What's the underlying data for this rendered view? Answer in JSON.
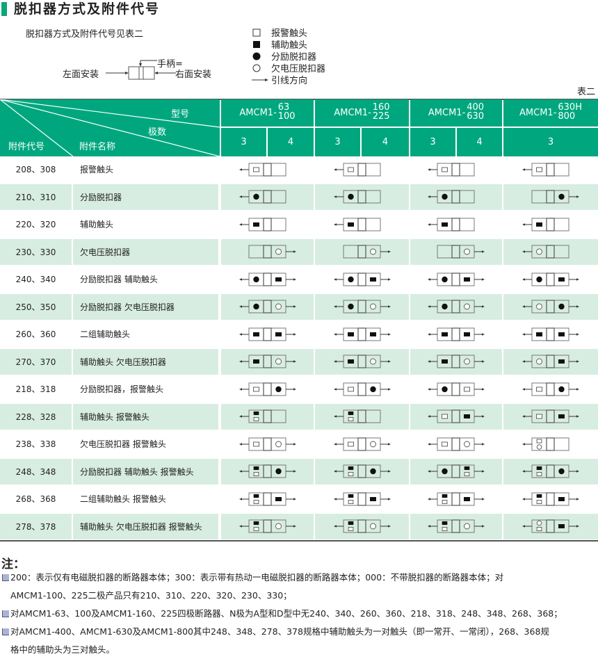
{
  "title": "脱扣器方式及附件代号",
  "intro": "脱扣器方式及附件代号见表二",
  "mounting": {
    "left": "左面安装",
    "right": "右面安装",
    "handle": "手柄="
  },
  "legend": [
    {
      "icon": "white-square",
      "label": "报警触头"
    },
    {
      "icon": "black-square",
      "label": "辅助触头"
    },
    {
      "icon": "black-circle",
      "label": "分励脱扣器"
    },
    {
      "icon": "white-circle",
      "label": "欠电压脱扣器"
    },
    {
      "icon": "arrow-right",
      "label": "引线方向"
    }
  ],
  "table_no": "表二",
  "colors": {
    "header_green": "#00a77e",
    "row_alt": "#d8ede1"
  },
  "header": {
    "model_label": "型号",
    "poles_label": "极数",
    "code_label": "附件代号",
    "name_label": "附件名称",
    "models": [
      {
        "prefix": "AMCM1-",
        "top": "63",
        "bottom": "100",
        "poles": [
          "3",
          "4"
        ]
      },
      {
        "prefix": "AMCM1-",
        "top": "160",
        "bottom": "225",
        "poles": [
          "3",
          "4"
        ]
      },
      {
        "prefix": "AMCM1-",
        "top": "400",
        "bottom": "630",
        "poles": [
          "3",
          "4"
        ]
      },
      {
        "prefix": "AMCM1-",
        "top": "630H",
        "bottom": "800",
        "poles": [
          "3"
        ]
      }
    ]
  },
  "rows": [
    {
      "code": "208、308",
      "name": "报警触头",
      "diagrams": [
        {
          "left": [
            "white-square"
          ],
          "right": [],
          "arrows": "left"
        },
        {
          "left": [
            "white-square"
          ],
          "right": [],
          "arrows": "left"
        },
        {
          "left": [
            "white-square"
          ],
          "right": [],
          "arrows": "left"
        },
        {
          "left": [
            "white-square"
          ],
          "right": [],
          "arrows": "left"
        }
      ]
    },
    {
      "code": "210、310",
      "name": "分励脱扣器",
      "diagrams": [
        {
          "left": [
            "black-circle"
          ],
          "right": [],
          "arrows": "left"
        },
        {
          "left": [
            "black-circle"
          ],
          "right": [],
          "arrows": "left"
        },
        {
          "left": [
            "black-circle"
          ],
          "right": [],
          "arrows": "left"
        },
        {
          "left": [],
          "right": [
            "black-circle"
          ],
          "arrows": "right"
        }
      ]
    },
    {
      "code": "220、320",
      "name": "辅助触头",
      "diagrams": [
        {
          "left": [
            "black-square"
          ],
          "right": [],
          "arrows": "left"
        },
        {
          "left": [
            "black-square"
          ],
          "right": [],
          "arrows": "left"
        },
        {
          "left": [
            "black-square"
          ],
          "right": [],
          "arrows": "left"
        },
        {
          "left": [
            "black-square"
          ],
          "right": [],
          "arrows": "left"
        }
      ]
    },
    {
      "code": "230、330",
      "name": "欠电压脱扣器",
      "diagrams": [
        {
          "left": [],
          "right": [
            "white-circle"
          ],
          "arrows": "right"
        },
        {
          "left": [],
          "right": [
            "white-circle"
          ],
          "arrows": "right"
        },
        {
          "left": [],
          "right": [
            "white-circle"
          ],
          "arrows": "right"
        },
        {
          "left": [
            "white-circle"
          ],
          "right": [],
          "arrows": "left"
        }
      ]
    },
    {
      "code": "240、340",
      "name": "分励脱扣器 辅助触头",
      "diagrams": [
        {
          "left": [
            "black-circle"
          ],
          "right": [
            "black-square"
          ],
          "arrows": "both"
        },
        {
          "left": [
            "black-circle"
          ],
          "right": [
            "black-square"
          ],
          "arrows": "both"
        },
        {
          "left": [
            "black-circle"
          ],
          "right": [
            "black-square"
          ],
          "arrows": "both"
        },
        {
          "left": [
            "black-circle"
          ],
          "right": [
            "black-square"
          ],
          "arrows": "both"
        }
      ]
    },
    {
      "code": "250、350",
      "name": "分励脱扣器 欠电压脱扣器",
      "diagrams": [
        {
          "left": [
            "black-circle"
          ],
          "right": [
            "white-circle"
          ],
          "arrows": "both"
        },
        {
          "left": [
            "black-circle"
          ],
          "right": [
            "white-circle"
          ],
          "arrows": "both"
        },
        {
          "left": [
            "black-circle"
          ],
          "right": [
            "white-circle"
          ],
          "arrows": "both"
        },
        {
          "left": [
            "white-circle"
          ],
          "right": [
            "black-circle"
          ],
          "arrows": "both"
        }
      ]
    },
    {
      "code": "260、360",
      "name": "二组辅助触头",
      "diagrams": [
        {
          "left": [
            "black-square"
          ],
          "right": [
            "black-square"
          ],
          "arrows": "both"
        },
        {
          "left": [
            "black-square"
          ],
          "right": [
            "black-square"
          ],
          "arrows": "both"
        },
        {
          "left": [
            "black-square"
          ],
          "right": [
            "black-square"
          ],
          "arrows": "both"
        },
        {
          "left": [
            "black-square"
          ],
          "right": [
            "black-square"
          ],
          "arrows": "both"
        }
      ]
    },
    {
      "code": "270、370",
      "name": "辅助触头 欠电压脱扣器",
      "diagrams": [
        {
          "left": [
            "black-square"
          ],
          "right": [
            "white-circle"
          ],
          "arrows": "both"
        },
        {
          "left": [
            "black-square"
          ],
          "right": [
            "white-circle"
          ],
          "arrows": "both"
        },
        {
          "left": [
            "black-square"
          ],
          "right": [
            "white-circle"
          ],
          "arrows": "both"
        },
        {
          "left": [
            "white-circle"
          ],
          "right": [
            "black-square"
          ],
          "arrows": "both"
        }
      ]
    },
    {
      "code": "218、318",
      "name": "分励脱扣器，报警触头",
      "diagrams": [
        {
          "left": [
            "white-square"
          ],
          "right": [
            "black-circle"
          ],
          "arrows": "both"
        },
        {
          "left": [
            "white-square"
          ],
          "right": [
            "black-circle"
          ],
          "arrows": "both"
        },
        {
          "left": [
            "black-circle"
          ],
          "right": [
            "white-square"
          ],
          "arrows": "both"
        },
        {
          "left": [
            "white-square"
          ],
          "right": [
            "black-circle"
          ],
          "arrows": "both"
        }
      ]
    },
    {
      "code": "228、328",
      "name": "辅助触头 报警触头",
      "diagrams": [
        {
          "left": [
            "black-square",
            "white-square"
          ],
          "right": [],
          "arrows": "left"
        },
        {
          "left": [
            "black-square",
            "white-square"
          ],
          "right": [],
          "arrows": "left"
        },
        {
          "left": [
            "white-square"
          ],
          "right": [
            "black-square"
          ],
          "arrows": "both"
        },
        {
          "left": [
            "white-square"
          ],
          "right": [
            "black-square"
          ],
          "arrows": "both"
        }
      ]
    },
    {
      "code": "238、338",
      "name": "欠电压脱扣器 报警触头",
      "diagrams": [
        {
          "left": [
            "white-square"
          ],
          "right": [
            "white-circle"
          ],
          "arrows": "both"
        },
        {
          "left": [
            "white-square"
          ],
          "right": [
            "white-circle"
          ],
          "arrows": "both"
        },
        {
          "left": [
            "white-square"
          ],
          "right": [
            "white-circle"
          ],
          "arrows": "both"
        },
        {
          "left": [
            "white-square",
            "white-circle"
          ],
          "right": [],
          "arrows": "left"
        }
      ]
    },
    {
      "code": "248、348",
      "name": "分励脱扣器 辅助触头 报警触头",
      "diagrams": [
        {
          "left": [
            "black-square",
            "white-square"
          ],
          "right": [
            "black-circle"
          ],
          "arrows": "both"
        },
        {
          "left": [
            "black-square",
            "white-square"
          ],
          "right": [
            "black-circle"
          ],
          "arrows": "both"
        },
        {
          "left": [
            "black-circle"
          ],
          "right": [
            "black-square",
            "white-square"
          ],
          "arrows": "both"
        },
        {
          "left": [
            "black-square",
            "white-square"
          ],
          "right": [
            "black-circle"
          ],
          "arrows": "both"
        }
      ]
    },
    {
      "code": "268、368",
      "name": "二组辅助触头 报警触头",
      "diagrams": [
        {
          "left": [
            "black-square",
            "white-square"
          ],
          "right": [
            "black-square"
          ],
          "arrows": "both"
        },
        {
          "left": [
            "black-square",
            "white-square"
          ],
          "right": [
            "black-square"
          ],
          "arrows": "both"
        },
        {
          "left": [
            "black-square",
            "white-square"
          ],
          "right": [
            "black-square"
          ],
          "arrows": "both"
        },
        {
          "left": [
            "black-square",
            "white-square"
          ],
          "right": [
            "black-square"
          ],
          "arrows": "both"
        }
      ]
    },
    {
      "code": "278、378",
      "name": "辅助触头 欠电压脱扣器 报警触头",
      "diagrams": [
        {
          "left": [
            "black-square",
            "white-square"
          ],
          "right": [
            "white-circle"
          ],
          "arrows": "both"
        },
        {
          "left": [
            "black-square",
            "white-square"
          ],
          "right": [
            "white-circle"
          ],
          "arrows": "both"
        },
        {
          "left": [
            "black-square",
            "white-square"
          ],
          "right": [
            "white-circle"
          ],
          "arrows": "both"
        },
        {
          "left": [
            "white-circle",
            "white-square"
          ],
          "right": [
            "black-square"
          ],
          "arrows": "both"
        }
      ]
    }
  ],
  "notes": {
    "title": "注：",
    "items": [
      {
        "line1": "200：表示仅有电磁脱扣器的断路器本体；300：表示带有热动一电磁脱扣器的断路器本体；000：不带脱扣器的断路器本体；对",
        "line2": "AMCM1-100、225二极产品只有210、310、220、320、230、330；"
      },
      {
        "line1": "对AMCM1-63、100及AMCM1-160、225四极断路器、N极为A型和D型中无240、340、260、360、218、318、248、348、268、368；"
      },
      {
        "line1": "对AMCM1-400、AMCM1-630及AMCM1-800其中248、348、278、378规格中辅助触头为一对触头（即一常开、一常闭），268、368规",
        "line2": "格中的辅助头为三对触头。"
      }
    ]
  }
}
